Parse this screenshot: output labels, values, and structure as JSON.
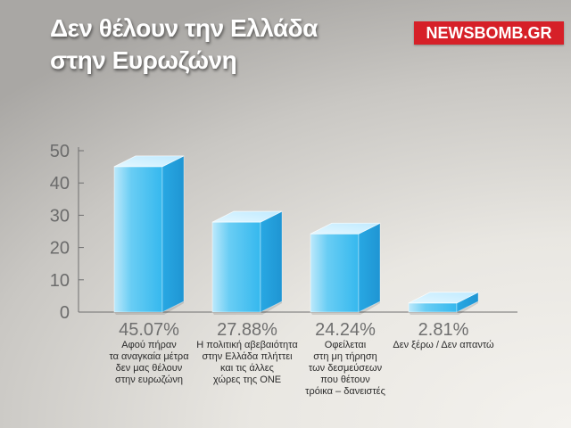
{
  "header": {
    "title_line1": "Δεν θέλουν την Ελλάδα",
    "title_line2": "στην Ευρωζώνη",
    "logo_text": "NEWSBOMB.GR"
  },
  "colors": {
    "bar_front": "#35b8ee",
    "bar_top": "#bfeaff",
    "bar_side": "#1f95d3",
    "axis": "#6f6f6f",
    "text": "#2b2b2b",
    "logo_bg": "#d62028"
  },
  "chart_data": {
    "type": "bar",
    "title": "Δεν θέλουν την Ελλάδα στην Ευρωζώνη",
    "xlabel": "",
    "ylabel": "",
    "ylim": [
      0,
      50
    ],
    "yticks": [
      "0",
      "10",
      "20",
      "30",
      "40",
      "50"
    ],
    "grid": false,
    "values": [
      45.07,
      27.88,
      24.24,
      2.81
    ],
    "value_labels": [
      "45.07%",
      "27.88%",
      "24.24%",
      "2.81%"
    ],
    "categories": [
      [
        "Αφού πήραν",
        "τα αναγκαία μέτρα",
        "δεν μας θέλουν",
        "στην ευρωζώνη"
      ],
      [
        "Η πολιτική αβεβαιότητα",
        "στην Ελλάδα πλήττει",
        "και τις άλλες",
        "χώρες της ΟΝΕ"
      ],
      [
        "Οφείλεται",
        "στη μη τήρηση",
        "των δεσμεύσεων",
        "που θέτουν",
        "τρόικα – δανειστές"
      ],
      [
        "Δεν ξέρω / Δεν απαντώ"
      ]
    ]
  }
}
